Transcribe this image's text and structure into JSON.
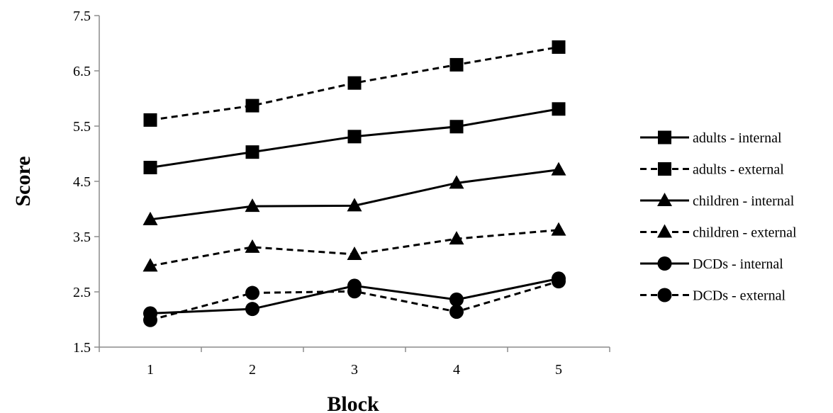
{
  "chart_data": {
    "type": "line",
    "title": "",
    "xlabel": "Block",
    "ylabel": "Score",
    "categories": [
      "1",
      "2",
      "3",
      "4",
      "5"
    ],
    "ylim": [
      1.5,
      7.5
    ],
    "yticks": [
      "1.5",
      "2.5",
      "3.5",
      "4.5",
      "5.5",
      "6.5",
      "7.5"
    ],
    "grid": false,
    "legend_position": "right",
    "series": [
      {
        "name": "adults - internal",
        "marker": "square",
        "line": "solid",
        "values": [
          4.75,
          5.03,
          5.31,
          5.49,
          5.81
        ]
      },
      {
        "name": "adults - external",
        "marker": "square",
        "line": "dashed",
        "values": [
          5.61,
          5.87,
          6.28,
          6.61,
          6.93
        ]
      },
      {
        "name": "children - internal",
        "marker": "triangle",
        "line": "solid",
        "values": [
          3.81,
          4.05,
          4.06,
          4.47,
          4.71
        ]
      },
      {
        "name": "children - external",
        "marker": "triangle",
        "line": "dashed",
        "values": [
          2.97,
          3.31,
          3.18,
          3.46,
          3.62
        ]
      },
      {
        "name": "DCDs - internal",
        "marker": "circle",
        "line": "solid",
        "values": [
          2.11,
          2.19,
          2.61,
          2.36,
          2.74
        ]
      },
      {
        "name": "DCDs - external",
        "marker": "circle",
        "line": "dashed",
        "values": [
          1.99,
          2.48,
          2.51,
          2.14,
          2.69
        ]
      }
    ],
    "colors": {
      "line": "#000000",
      "background": "#ffffff"
    }
  }
}
